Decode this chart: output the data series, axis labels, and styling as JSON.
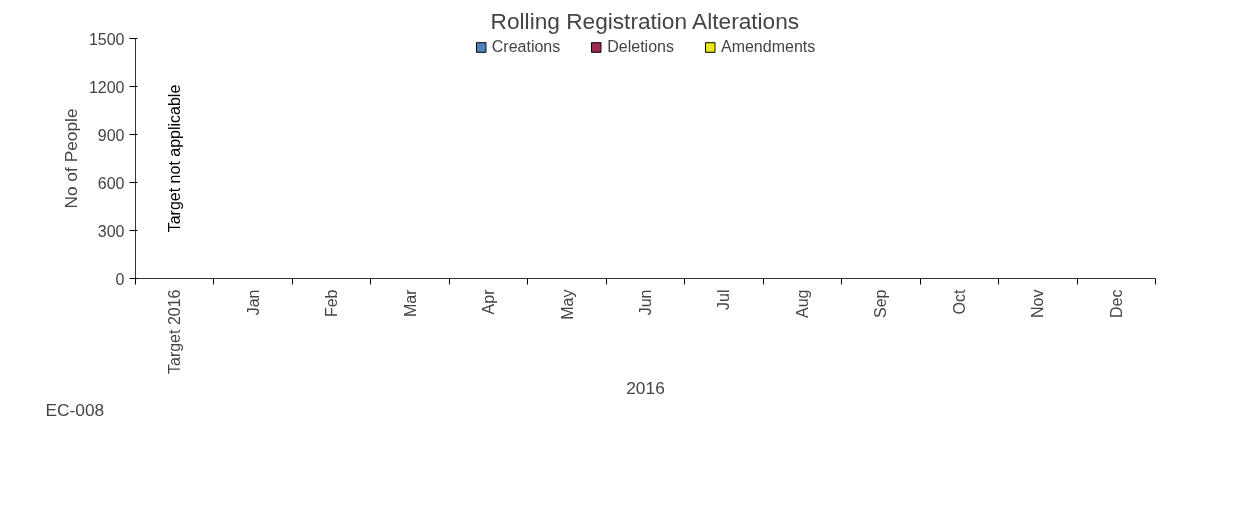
{
  "chart_data": {
    "type": "bar",
    "title": "Rolling Registration Alterations",
    "xlabel": "2016",
    "ylabel": "No of People",
    "categories": [
      "Target 2016",
      "Jan",
      "Feb",
      "Mar",
      "Apr",
      "May",
      "Jun",
      "Jul",
      "Aug",
      "Sep",
      "Oct",
      "Nov",
      "Dec"
    ],
    "series": [
      {
        "name": "Creations",
        "color": "#4f81bd",
        "values": [
          null,
          null,
          null,
          null,
          null,
          null,
          null,
          null,
          null,
          null,
          null,
          null,
          null
        ]
      },
      {
        "name": "Deletions",
        "color": "#9b2d4f",
        "values": [
          null,
          null,
          null,
          null,
          null,
          null,
          null,
          null,
          null,
          null,
          null,
          null,
          null
        ]
      },
      {
        "name": "Amendments",
        "color": "#e8e81a",
        "values": [
          null,
          null,
          null,
          null,
          null,
          null,
          null,
          null,
          null,
          null,
          null,
          null,
          null
        ]
      }
    ],
    "ylim": [
      0,
      1500
    ],
    "yticks": [
      0,
      300,
      600,
      900,
      1200,
      1500
    ],
    "grid": false,
    "legend": "top",
    "annotations": [
      "Target not applicable",
      "EC-008"
    ]
  }
}
